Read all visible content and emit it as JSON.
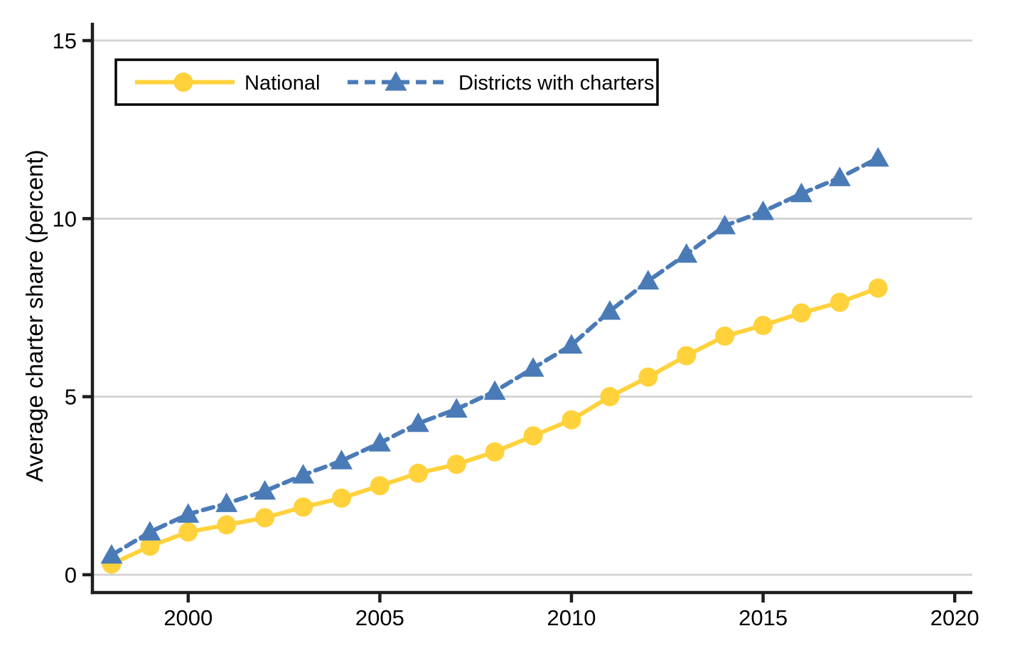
{
  "chart_data": {
    "type": "line",
    "title": "",
    "xlabel": "",
    "ylabel": "Average charter share (percent)",
    "x": [
      1998,
      1999,
      2000,
      2001,
      2002,
      2003,
      2004,
      2005,
      2006,
      2007,
      2008,
      2009,
      2010,
      2011,
      2012,
      2013,
      2014,
      2015,
      2016,
      2017,
      2018
    ],
    "series": [
      {
        "name": "National",
        "color": "#FFD23C",
        "marker": "circle",
        "line_style": "solid",
        "values": [
          0.3,
          0.8,
          1.2,
          1.4,
          1.6,
          1.9,
          2.15,
          2.5,
          2.85,
          3.1,
          3.45,
          3.9,
          4.35,
          5.0,
          5.55,
          6.15,
          6.7,
          7.0,
          7.35,
          7.65,
          8.05
        ]
      },
      {
        "name": "Districts with charters",
        "color": "#4A7BB7",
        "marker": "triangle",
        "line_style": "dashed",
        "values": [
          0.55,
          1.2,
          1.7,
          2.0,
          2.35,
          2.8,
          3.2,
          3.7,
          4.25,
          4.65,
          5.15,
          5.8,
          6.45,
          7.4,
          8.25,
          9.0,
          9.8,
          10.2,
          10.7,
          11.15,
          11.7
        ]
      }
    ],
    "x_ticks": [
      2000,
      2005,
      2010,
      2015,
      2020
    ],
    "y_ticks": [
      0,
      5,
      10,
      15
    ],
    "x_tick_labels": [
      "2000",
      "2005",
      "2010",
      "2015",
      "2020"
    ],
    "y_tick_labels": [
      "0",
      "5",
      "10",
      "15"
    ],
    "x_range": [
      1997.5,
      2020.46
    ],
    "y_range": [
      -0.5,
      15.5
    ],
    "grid": "horizontal",
    "legend_position": "top-left-inside",
    "axis_color": "#1e1e1e",
    "grid_color": "#d4d4d4",
    "text_color": "#000000",
    "background": "#ffffff"
  }
}
